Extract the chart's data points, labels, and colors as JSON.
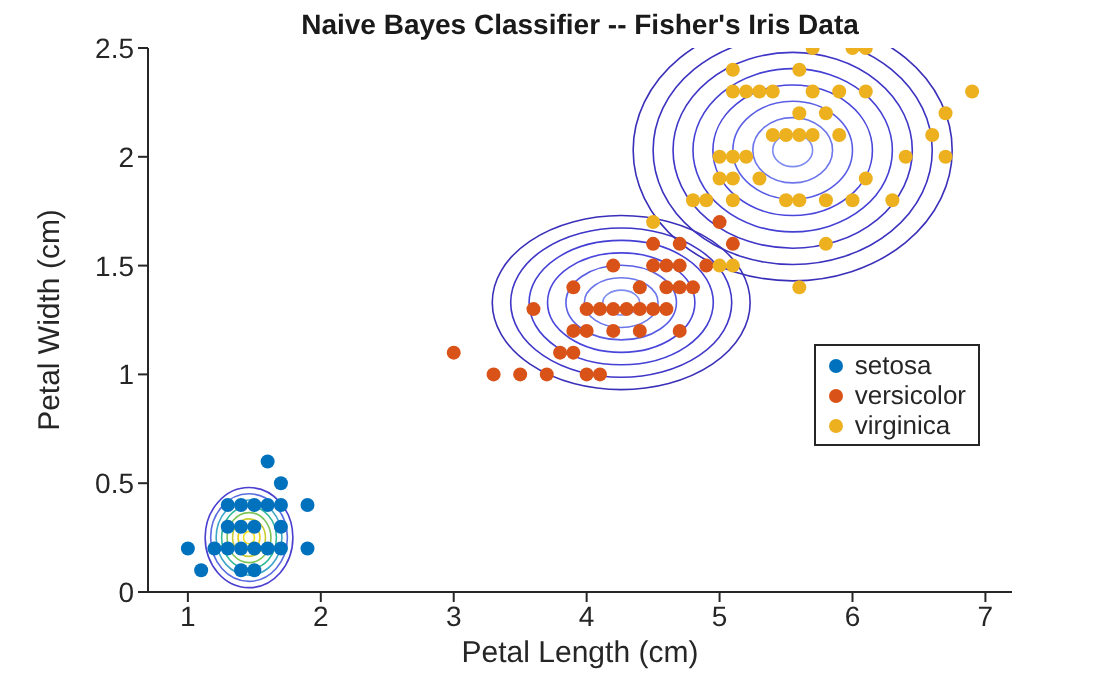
{
  "chart_data": {
    "type": "scatter",
    "title": "Naive Bayes Classifier -- Fisher's Iris Data",
    "xlabel": "Petal Length (cm)",
    "ylabel": "Petal Width (cm)",
    "xlim": [
      0.7,
      7.2
    ],
    "ylim": [
      0,
      2.5
    ],
    "xticks": [
      1,
      2,
      3,
      4,
      5,
      6,
      7
    ],
    "yticks": [
      0,
      0.5,
      1,
      1.5,
      2,
      2.5
    ],
    "grid": false,
    "legend": "right",
    "marker": "circle",
    "series": [
      {
        "name": "setosa",
        "color": "#0072bd",
        "x": [
          1.0,
          1.1,
          1.2,
          1.3,
          1.3,
          1.3,
          1.4,
          1.4,
          1.4,
          1.5,
          1.5,
          1.5,
          1.5,
          1.6,
          1.6,
          1.6,
          1.7,
          1.7,
          1.7,
          1.7,
          1.9,
          1.9,
          1.4
        ],
        "values": [
          0.2,
          0.1,
          0.2,
          0.2,
          0.3,
          0.4,
          0.1,
          0.2,
          0.3,
          0.1,
          0.2,
          0.3,
          0.4,
          0.2,
          0.4,
          0.6,
          0.2,
          0.3,
          0.4,
          0.5,
          0.2,
          0.4,
          0.4
        ]
      },
      {
        "name": "versicolor",
        "color": "#d95319",
        "x": [
          3.0,
          3.3,
          3.5,
          3.6,
          3.7,
          3.8,
          3.9,
          3.9,
          3.9,
          4.0,
          4.0,
          4.0,
          4.1,
          4.1,
          4.2,
          4.2,
          4.2,
          4.3,
          4.4,
          4.4,
          4.4,
          4.5,
          4.5,
          4.6,
          4.6,
          4.6,
          4.7,
          4.7,
          4.7,
          4.7,
          4.8,
          4.9,
          5.0,
          5.1,
          4.5
        ],
        "values": [
          1.1,
          1.0,
          1.0,
          1.3,
          1.0,
          1.1,
          1.1,
          1.2,
          1.4,
          1.0,
          1.2,
          1.3,
          1.0,
          1.3,
          1.2,
          1.3,
          1.5,
          1.3,
          1.2,
          1.3,
          1.4,
          1.3,
          1.5,
          1.3,
          1.4,
          1.5,
          1.2,
          1.4,
          1.5,
          1.6,
          1.4,
          1.5,
          1.7,
          1.6,
          1.6
        ]
      },
      {
        "name": "virginica",
        "color": "#edb120",
        "x": [
          4.5,
          4.8,
          4.9,
          5.0,
          5.1,
          5.0,
          5.0,
          5.1,
          5.1,
          5.1,
          5.1,
          5.1,
          5.2,
          5.2,
          5.3,
          5.3,
          5.4,
          5.4,
          5.5,
          5.5,
          5.6,
          5.6,
          5.6,
          5.6,
          5.6,
          5.7,
          5.7,
          5.7,
          5.8,
          5.8,
          5.8,
          5.9,
          5.9,
          6.0,
          6.0,
          6.1,
          6.1,
          6.1,
          6.3,
          6.4,
          6.6,
          6.7,
          6.7,
          6.9
        ],
        "values": [
          1.7,
          1.8,
          1.8,
          1.5,
          1.5,
          1.9,
          2.0,
          1.8,
          1.9,
          2.0,
          2.3,
          2.4,
          2.0,
          2.3,
          1.9,
          2.3,
          2.1,
          2.3,
          1.8,
          2.1,
          1.4,
          1.8,
          2.1,
          2.2,
          2.4,
          2.1,
          2.3,
          2.5,
          1.6,
          1.8,
          2.2,
          2.1,
          2.3,
          1.8,
          2.5,
          1.9,
          2.3,
          2.5,
          1.8,
          2.0,
          2.1,
          2.0,
          2.2,
          2.3
        ]
      }
    ]
  }
}
